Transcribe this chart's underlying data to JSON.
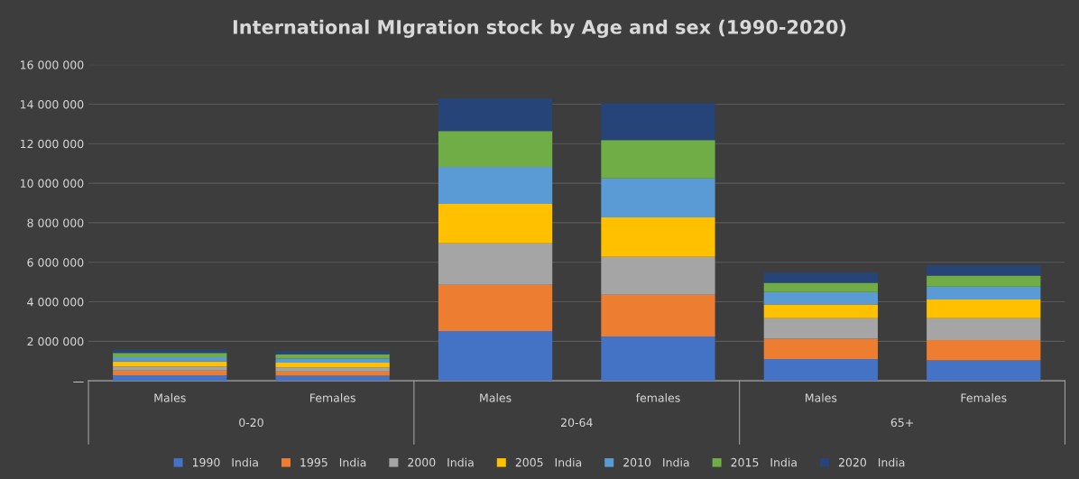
{
  "chart_data": {
    "type": "bar",
    "stacked": true,
    "title": "International MIgration stock by Age and sex (1990-2020)",
    "categories": [
      "Males",
      "Females",
      "Males",
      "females",
      "Males",
      "Females"
    ],
    "annotations": [
      "0-20",
      "20-64",
      "65+"
    ],
    "series": [
      {
        "name": "1990   India",
        "color": "#4472c4",
        "values": [
          280000,
          260000,
          2520000,
          2240000,
          1100000,
          1030000
        ]
      },
      {
        "name": "1995   India",
        "color": "#ed7d31",
        "values": [
          240000,
          220000,
          2340000,
          2110000,
          1030000,
          1030000
        ]
      },
      {
        "name": "2000   India",
        "color": "#a5a5a5",
        "values": [
          200000,
          200000,
          2100000,
          1920000,
          1040000,
          1110000
        ]
      },
      {
        "name": "2005   India",
        "color": "#ffc000",
        "values": [
          260000,
          240000,
          1990000,
          2000000,
          700000,
          940000
        ]
      },
      {
        "name": "2010   India",
        "color": "#5b9bd5",
        "values": [
          210000,
          200000,
          1880000,
          1980000,
          620000,
          660000
        ]
      },
      {
        "name": "2015   India",
        "color": "#70ad47",
        "values": [
          220000,
          220000,
          1810000,
          1940000,
          470000,
          560000
        ]
      },
      {
        "name": "2020   India",
        "color": "#264478",
        "values": [
          160000,
          160000,
          1640000,
          1850000,
          510000,
          510000
        ]
      }
    ],
    "ylim": [
      0,
      16000000
    ],
    "yticks": [
      {
        "value": 0,
        "label": "—"
      },
      {
        "value": 2000000,
        "label": "2 000 000"
      },
      {
        "value": 4000000,
        "label": "4 000 000"
      },
      {
        "value": 6000000,
        "label": "6 000 000"
      },
      {
        "value": 8000000,
        "label": "8 000 000"
      },
      {
        "value": 10000000,
        "label": "10 000 000"
      },
      {
        "value": 12000000,
        "label": "12 000 000"
      },
      {
        "value": 14000000,
        "label": "14 000 000"
      },
      {
        "value": 16000000,
        "label": "16 000 000"
      }
    ],
    "grid": "y",
    "legend": "bottom"
  }
}
